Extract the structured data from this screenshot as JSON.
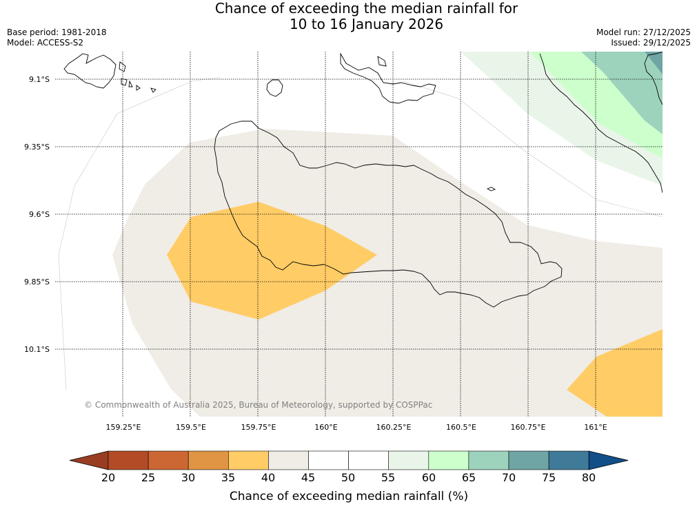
{
  "title": {
    "line1": "Chance of exceeding the median rainfall for",
    "line2": "10 to 16 January 2026"
  },
  "meta": {
    "base_period": "Base period: 1981-2018",
    "model": "Model: ACCESS-S2",
    "model_run": "Model run: 27/12/2025",
    "issued": "Issued: 29/12/2025"
  },
  "map": {
    "lat_labels": [
      {
        "lat": -9.1,
        "label": "9.1°S"
      },
      {
        "lat": -9.35,
        "label": "9.35°S"
      },
      {
        "lat": -9.6,
        "label": "9.6°S"
      },
      {
        "lat": -9.85,
        "label": "9.85°S"
      },
      {
        "lat": -10.1,
        "label": "10.1°S"
      }
    ],
    "lon_labels": [
      {
        "lon": 159.25,
        "label": "159.25°E"
      },
      {
        "lon": 159.5,
        "label": "159.5°E"
      },
      {
        "lon": 159.75,
        "label": "159.75°E"
      },
      {
        "lon": 160.0,
        "label": "160°E"
      },
      {
        "lon": 160.25,
        "label": "160.25°E"
      },
      {
        "lon": 160.5,
        "label": "160.5°E"
      },
      {
        "lon": 160.75,
        "label": "160.75°E"
      },
      {
        "lon": 161.0,
        "label": "161°E"
      }
    ],
    "copyright": "© Commonwealth of Australia 2025, Bureau of Meteorology, supported by COSPPac",
    "colors": {
      "c35_40": "#ffcc66",
      "c40_45": "#f0ece6",
      "c55_60": "#e9f5e9",
      "c60_65": "#ccffcc",
      "c65_70": "#9dd3bd",
      "c70_75": "#6fa5a5",
      "coast": "#000000",
      "grid": "#000000"
    }
  },
  "colorbar": {
    "title": "Chance of exceeding median rainfall (%)",
    "ticks": [
      "20",
      "25",
      "30",
      "35",
      "40",
      "45",
      "50",
      "55",
      "60",
      "65",
      "70",
      "75",
      "80"
    ],
    "colors": [
      "#b34c26",
      "#cc6633",
      "#e09545",
      "#ffcc66",
      "#f0ece6",
      "#ffffff",
      "#ffffff",
      "#e9f5e9",
      "#ccffcc",
      "#9dd3bd",
      "#6fa5a5",
      "#3f7a99"
    ],
    "under_color": "#993d22",
    "over_color": "#124e87"
  }
}
